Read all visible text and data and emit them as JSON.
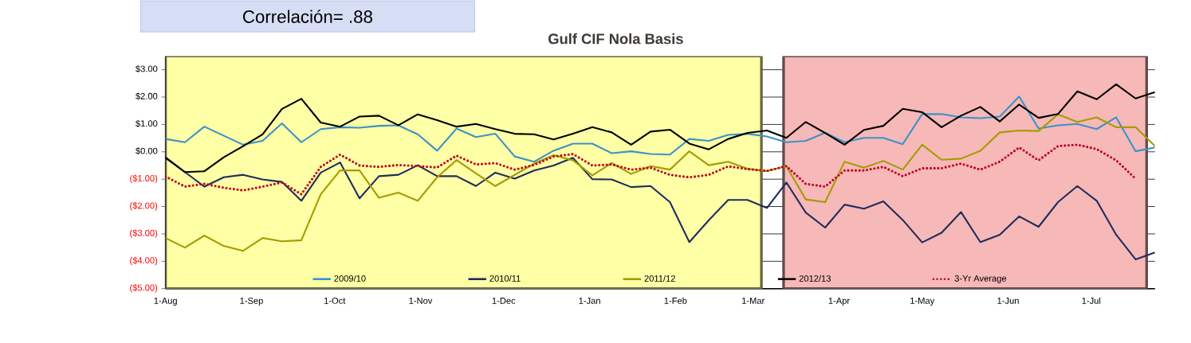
{
  "chart_data": {
    "type": "line",
    "title": "Gulf CIF Nola Basis",
    "annotations": [
      "Correlación= .88"
    ],
    "x": [
      "2012-08-01",
      "2012-08-08",
      "2012-08-15",
      "2012-08-22",
      "2012-08-29",
      "2012-09-05",
      "2012-09-12",
      "2012-09-19",
      "2012-09-26",
      "2012-10-03",
      "2012-10-10",
      "2012-10-17",
      "2012-10-24",
      "2012-10-31",
      "2012-11-07",
      "2012-11-14",
      "2012-11-21",
      "2012-11-28",
      "2012-12-05",
      "2012-12-12",
      "2012-12-19",
      "2012-12-26",
      "2013-01-02",
      "2013-01-09",
      "2013-01-16",
      "2013-01-23",
      "2013-01-30",
      "2013-02-06",
      "2013-02-13",
      "2013-02-20",
      "2013-02-27",
      "2013-03-06",
      "2013-03-13",
      "2013-03-20",
      "2013-03-27",
      "2013-04-03",
      "2013-04-10",
      "2013-04-17",
      "2013-04-24",
      "2013-05-01",
      "2013-05-08",
      "2013-05-15",
      "2013-05-22",
      "2013-05-29",
      "2013-06-05",
      "2013-06-12",
      "2013-06-19",
      "2013-06-26",
      "2013-07-03",
      "2013-07-10",
      "2013-07-17",
      "2013-07-24"
    ],
    "series": [
      {
        "name": "2009/10",
        "color": "#3a93c8",
        "values": [
          0.47,
          0.35,
          0.92,
          0.59,
          0.26,
          0.4,
          1.04,
          0.35,
          0.83,
          0.9,
          0.88,
          0.95,
          0.97,
          0.64,
          0.04,
          0.85,
          0.54,
          0.66,
          -0.17,
          -0.36,
          0.04,
          0.3,
          0.3,
          -0.05,
          0.02,
          -0.08,
          -0.1,
          0.47,
          0.4,
          0.62,
          0.66,
          0.56,
          0.35,
          0.4,
          0.7,
          0.35,
          0.51,
          0.51,
          0.28,
          1.38,
          1.38,
          1.26,
          1.23,
          1.29,
          2.02,
          0.85,
          0.97,
          1.02,
          0.83,
          1.26,
          0.02,
          0.16
        ]
      },
      {
        "name": "2010/11",
        "color": "#1f2d5c",
        "values": [
          -0.2,
          -0.74,
          -1.27,
          -0.93,
          -0.84,
          -1.01,
          -1.1,
          -1.79,
          -0.76,
          -0.39,
          -1.7,
          -0.89,
          -0.84,
          -0.49,
          -0.89,
          -0.89,
          -1.25,
          -0.76,
          -0.98,
          -0.68,
          -0.5,
          -0.22,
          -1.0,
          -1.01,
          -1.29,
          -1.25,
          -1.84,
          -3.3,
          -2.5,
          -1.76,
          -1.76,
          -2.05,
          -1.12,
          -2.22,
          -2.77,
          -1.93,
          -2.08,
          -1.81,
          -2.49,
          -3.31,
          -2.96,
          -2.2,
          -3.3,
          -3.03,
          -2.36,
          -2.74,
          -1.84,
          -1.25,
          -1.79,
          -3.03,
          -3.93,
          -3.68
        ]
      },
      {
        "name": "2011/12",
        "color": "#a39c00",
        "values": [
          -3.15,
          -3.5,
          -3.06,
          -3.44,
          -3.62,
          -3.15,
          -3.27,
          -3.23,
          -1.55,
          -0.68,
          -0.68,
          -1.68,
          -1.49,
          -1.79,
          -0.93,
          -0.3,
          -0.79,
          -1.25,
          -0.84,
          -0.43,
          -0.12,
          -0.31,
          -0.86,
          -0.41,
          -0.81,
          -0.52,
          -0.65,
          0.02,
          -0.49,
          -0.36,
          -0.62,
          -0.7,
          -0.52,
          -1.74,
          -1.84,
          -0.36,
          -0.58,
          -0.33,
          -0.65,
          0.26,
          -0.29,
          -0.25,
          0.04,
          0.71,
          0.78,
          0.76,
          1.37,
          1.09,
          1.26,
          0.9,
          0.9,
          0.21
        ]
      },
      {
        "name": "2012/13",
        "color": "#000000",
        "values": [
          -0.22,
          -0.74,
          -0.71,
          -0.2,
          0.21,
          0.64,
          1.57,
          1.94,
          1.07,
          0.92,
          1.29,
          1.32,
          0.97,
          1.37,
          1.16,
          0.92,
          1.02,
          0.83,
          0.66,
          0.64,
          0.45,
          0.66,
          0.9,
          0.71,
          0.26,
          0.74,
          0.81,
          0.3,
          0.09,
          0.47,
          0.69,
          0.78,
          0.51,
          1.09,
          0.69,
          0.26,
          0.8,
          0.95,
          1.57,
          1.45,
          0.9,
          1.32,
          1.64,
          1.11,
          1.73,
          1.24,
          1.38,
          2.21,
          1.92,
          2.47,
          1.95,
          2.18
        ]
      },
      {
        "name": "3-Yr Average",
        "color": "#c00020",
        "line_style": "dotted",
        "values": [
          -0.9,
          -1.27,
          -1.17,
          -1.31,
          -1.41,
          -1.27,
          -1.12,
          -1.55,
          -0.55,
          -0.1,
          -0.5,
          -0.55,
          -0.48,
          -0.52,
          -0.57,
          -0.14,
          -0.46,
          -0.41,
          -0.65,
          -0.48,
          -0.17,
          -0.08,
          -0.5,
          -0.46,
          -0.65,
          -0.58,
          -0.84,
          -0.93,
          -0.84,
          -0.53,
          -0.63,
          -0.7,
          -0.52,
          -1.17,
          -1.27,
          -0.68,
          -0.68,
          -0.55,
          -0.89,
          -0.6,
          -0.6,
          -0.43,
          -0.65,
          -0.36,
          0.16,
          -0.31,
          0.21,
          0.26,
          0.1,
          -0.31,
          -0.98,
          null
        ]
      }
    ],
    "xlim": [
      "2012-08-01",
      "2013-07-24"
    ],
    "xticks": [
      {
        "value": "2012-08-01",
        "label": "1-Aug"
      },
      {
        "value": "2012-09-01",
        "label": "1-Sep"
      },
      {
        "value": "2012-10-01",
        "label": "1-Oct"
      },
      {
        "value": "2012-11-01",
        "label": "1-Nov"
      },
      {
        "value": "2012-12-01",
        "label": "1-Dec"
      },
      {
        "value": "2013-01-01",
        "label": "1-Jan"
      },
      {
        "value": "2013-02-01",
        "label": "1-Feb"
      },
      {
        "value": "2013-03-01",
        "label": "1-Mar"
      },
      {
        "value": "2013-04-01",
        "label": "1-Apr"
      },
      {
        "value": "2013-05-01",
        "label": "1-May"
      },
      {
        "value": "2013-06-01",
        "label": "1-Jun"
      },
      {
        "value": "2013-07-01",
        "label": "1-Jul"
      }
    ],
    "ylim": [
      -5,
      3.5
    ],
    "yticks": [
      {
        "value": 3,
        "label": "$3.00"
      },
      {
        "value": 2,
        "label": "$2.00"
      },
      {
        "value": 1,
        "label": "$1.00"
      },
      {
        "value": 0,
        "label": "$0.00"
      },
      {
        "value": -1,
        "label": "($1.00)"
      },
      {
        "value": -2,
        "label": "($2.00)"
      },
      {
        "value": -3,
        "label": "($3.00)"
      },
      {
        "value": -4,
        "label": "($4.00)"
      },
      {
        "value": -5,
        "label": "($5.00)"
      }
    ],
    "bands": [
      {
        "axis": "x",
        "from": "2012-08-01",
        "to": "2013-03-04",
        "color": "#ffffa6"
      },
      {
        "axis": "x",
        "from": "2013-03-12",
        "to": "2013-07-21",
        "color": "#f7b8b8"
      }
    ],
    "grid": "y",
    "legend": "bottom",
    "marker": "none"
  }
}
